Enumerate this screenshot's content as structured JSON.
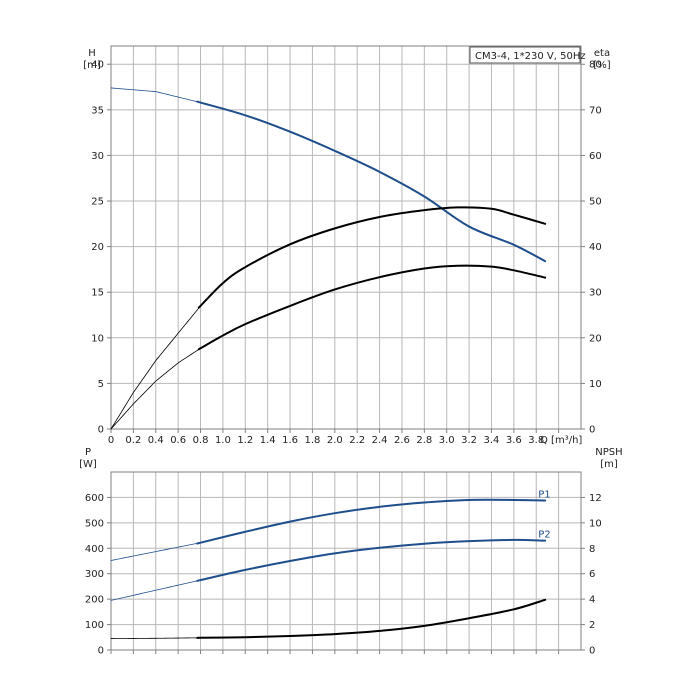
{
  "chart_data": [
    {
      "type": "line",
      "title": "CM3-4, 1*230 V, 50Hz",
      "xlabel": "Q [m³/h]",
      "ylabel": "H",
      "ylabel_unit": "[m]",
      "y2label": "eta",
      "y2label_unit": "[%]",
      "xlim": [
        0,
        4.2
      ],
      "ylim": [
        0,
        42
      ],
      "y2lim": [
        0,
        84
      ],
      "x_ticks": [
        "0",
        "0.2",
        "0.4",
        "0.6",
        "0.8",
        "1.0",
        "1.2",
        "1.4",
        "1.6",
        "1.8",
        "2.0",
        "2.2",
        "2.4",
        "2.6",
        "2.8",
        "3.0",
        "3.2",
        "3.4",
        "3.6",
        "3.8"
      ],
      "y_ticks": [
        "0",
        "5",
        "10",
        "15",
        "20",
        "25",
        "30",
        "35",
        "40"
      ],
      "y2_ticks": [
        "0",
        "10",
        "20",
        "30",
        "40",
        "50",
        "60",
        "70",
        "80"
      ],
      "grid": true,
      "series": [
        {
          "axis": "left",
          "color": "#1f4e8c",
          "duty_from": 0.8,
          "x": [
            0,
            0.4,
            0.8,
            1.2,
            1.6,
            2.0,
            2.4,
            2.8,
            3.2,
            3.6,
            3.88
          ],
          "values": [
            37.4,
            37.0,
            35.8,
            34.4,
            32.6,
            30.5,
            28.2,
            25.5,
            22.2,
            20.2,
            18.4
          ]
        },
        {
          "axis": "right",
          "color": "#000000",
          "duty_from": 0.8,
          "x": [
            0,
            0.2,
            0.4,
            0.6,
            0.8,
            1.0,
            1.2,
            1.6,
            2.0,
            2.4,
            2.8,
            3.1,
            3.4,
            3.6,
            3.88
          ],
          "values": [
            0,
            8,
            15,
            21,
            27,
            32,
            35.5,
            40.5,
            44,
            46.5,
            48,
            48.6,
            48.3,
            47,
            45
          ]
        },
        {
          "axis": "right",
          "color": "#000000",
          "duty_from": 0.8,
          "x": [
            0,
            0.2,
            0.4,
            0.6,
            0.8,
            1.0,
            1.2,
            1.6,
            2.0,
            2.4,
            2.8,
            3.1,
            3.4,
            3.6,
            3.88
          ],
          "values": [
            0,
            5.5,
            10.5,
            14.5,
            17.7,
            20.5,
            23,
            27,
            30.6,
            33.3,
            35.2,
            35.8,
            35.6,
            34.8,
            33.2
          ]
        }
      ]
    },
    {
      "type": "line",
      "xlabel": "",
      "ylabel": "P",
      "ylabel_unit": "[W]",
      "y2label": "NPSH",
      "y2label_unit": "[m]",
      "xlim": [
        0,
        4.2
      ],
      "ylim": [
        0,
        700
      ],
      "y2lim": [
        0,
        14
      ],
      "y_ticks": [
        "0",
        "100",
        "200",
        "300",
        "400",
        "500",
        "600"
      ],
      "y2_ticks": [
        "0",
        "2",
        "4",
        "6",
        "8",
        "10",
        "12"
      ],
      "grid": true,
      "series": [
        {
          "name": "P1",
          "axis": "left",
          "color": "#1f4e8c",
          "duty_from": 0.8,
          "x": [
            0,
            0.4,
            0.8,
            1.2,
            1.6,
            2.0,
            2.4,
            2.8,
            3.2,
            3.6,
            3.88
          ],
          "values": [
            352,
            387,
            422,
            465,
            505,
            538,
            563,
            580,
            590,
            590,
            588
          ]
        },
        {
          "name": "P2",
          "axis": "left",
          "color": "#1f4e8c",
          "duty_from": 0.8,
          "x": [
            0,
            0.4,
            0.8,
            1.2,
            1.6,
            2.0,
            2.4,
            2.8,
            3.2,
            3.6,
            3.88
          ],
          "values": [
            195,
            235,
            275,
            315,
            350,
            380,
            402,
            418,
            428,
            433,
            430
          ]
        },
        {
          "name": "",
          "axis": "right",
          "color": "#000000",
          "duty_from": 0.8,
          "x": [
            0,
            0.4,
            0.8,
            1.2,
            1.6,
            2.0,
            2.4,
            2.8,
            3.2,
            3.6,
            3.88
          ],
          "values": [
            0.9,
            0.92,
            0.96,
            1.0,
            1.1,
            1.25,
            1.5,
            1.9,
            2.5,
            3.2,
            3.95
          ]
        }
      ]
    }
  ]
}
